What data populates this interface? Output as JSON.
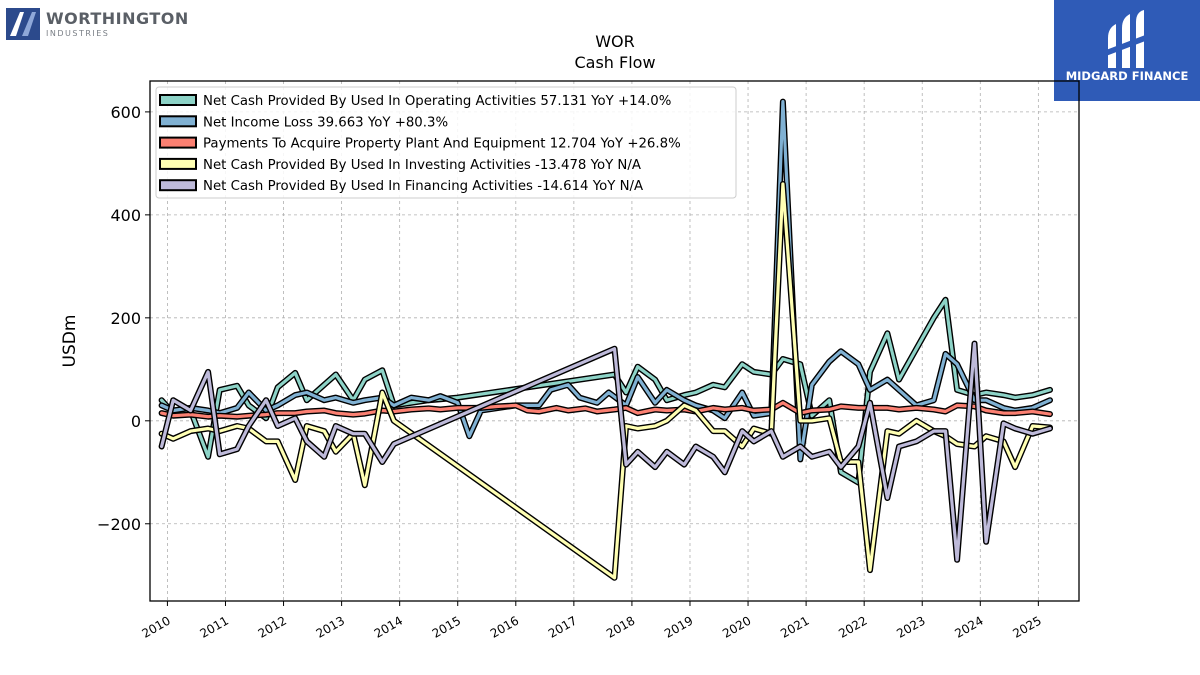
{
  "logos": {
    "left_brand": "WORTHINGTON",
    "left_sub": "INDUSTRIES",
    "right_brand": "MIDGARD FINANCE"
  },
  "chart_data": {
    "type": "line",
    "title": "WOR",
    "subtitle": "Cash Flow",
    "ylabel": "USDm",
    "xlabel": "",
    "xlim": [
      2009.7,
      2025.7
    ],
    "ylim": [
      -350,
      660
    ],
    "yticks": [
      -200,
      0,
      200,
      400,
      600
    ],
    "ytick_labels": [
      "−200",
      "0",
      "200",
      "400",
      "600"
    ],
    "xticks": [
      2010,
      2011,
      2012,
      2013,
      2014,
      2015,
      2016,
      2017,
      2018,
      2019,
      2020,
      2021,
      2022,
      2023,
      2024,
      2025
    ],
    "xtick_labels": [
      "2010",
      "2011",
      "2012",
      "2013",
      "2014",
      "2015",
      "2016",
      "2017",
      "2018",
      "2019",
      "2020",
      "2021",
      "2022",
      "2023",
      "2024",
      "2025"
    ],
    "grid": true,
    "legend_position": "top-left",
    "series": [
      {
        "name": "Net Cash Provided By Used In Operating Activities",
        "legend_label": "Net Cash Provided By Used In Operating Activities  57.131 YoY +14.0%",
        "color": "#8dd3c7",
        "points": [
          [
            2009.9,
            40
          ],
          [
            2010.1,
            15
          ],
          [
            2010.4,
            20
          ],
          [
            2010.7,
            -70
          ],
          [
            2010.9,
            60
          ],
          [
            2011.2,
            68
          ],
          [
            2011.4,
            30
          ],
          [
            2011.7,
            5
          ],
          [
            2011.9,
            65
          ],
          [
            2012.2,
            93
          ],
          [
            2012.4,
            40
          ],
          [
            2012.7,
            70
          ],
          [
            2012.9,
            90
          ],
          [
            2013.2,
            40
          ],
          [
            2013.4,
            80
          ],
          [
            2013.7,
            98
          ],
          [
            2013.9,
            30
          ],
          [
            2014.2,
            35
          ],
          [
            2014.5,
            40
          ],
          [
            2014.7,
            42
          ],
          [
            2015.0,
            45
          ],
          [
            2017.7,
            90
          ],
          [
            2017.9,
            55
          ],
          [
            2018.1,
            105
          ],
          [
            2018.4,
            80
          ],
          [
            2018.6,
            40
          ],
          [
            2018.9,
            50
          ],
          [
            2019.1,
            55
          ],
          [
            2019.4,
            70
          ],
          [
            2019.6,
            65
          ],
          [
            2019.9,
            110
          ],
          [
            2020.1,
            95
          ],
          [
            2020.4,
            90
          ],
          [
            2020.6,
            120
          ],
          [
            2020.9,
            110
          ],
          [
            2021.1,
            10
          ],
          [
            2021.4,
            40
          ],
          [
            2021.6,
            -100
          ],
          [
            2021.9,
            -120
          ],
          [
            2022.1,
            95
          ],
          [
            2022.4,
            170
          ],
          [
            2022.6,
            80
          ],
          [
            2022.9,
            140
          ],
          [
            2023.2,
            200
          ],
          [
            2023.4,
            235
          ],
          [
            2023.6,
            60
          ],
          [
            2023.9,
            50
          ],
          [
            2024.1,
            55
          ],
          [
            2024.4,
            50
          ],
          [
            2024.6,
            45
          ],
          [
            2024.9,
            50
          ],
          [
            2025.2,
            60
          ]
        ]
      },
      {
        "name": "Net Income Loss",
        "legend_label": "Net Income Loss  39.663 YoY +80.3%",
        "color": "#80b1d3",
        "points": [
          [
            2009.9,
            30
          ],
          [
            2010.1,
            20
          ],
          [
            2010.4,
            25
          ],
          [
            2010.7,
            20
          ],
          [
            2010.9,
            15
          ],
          [
            2011.2,
            25
          ],
          [
            2011.4,
            55
          ],
          [
            2011.7,
            20
          ],
          [
            2011.9,
            30
          ],
          [
            2012.2,
            50
          ],
          [
            2012.4,
            55
          ],
          [
            2012.7,
            40
          ],
          [
            2012.9,
            45
          ],
          [
            2013.2,
            35
          ],
          [
            2013.4,
            40
          ],
          [
            2013.7,
            45
          ],
          [
            2013.9,
            30
          ],
          [
            2014.2,
            45
          ],
          [
            2014.5,
            40
          ],
          [
            2014.7,
            48
          ],
          [
            2015.0,
            35
          ],
          [
            2015.2,
            -30
          ],
          [
            2015.4,
            20
          ],
          [
            2016.0,
            30
          ],
          [
            2016.4,
            30
          ],
          [
            2016.6,
            60
          ],
          [
            2016.9,
            70
          ],
          [
            2017.1,
            45
          ],
          [
            2017.4,
            35
          ],
          [
            2017.6,
            55
          ],
          [
            2017.9,
            30
          ],
          [
            2018.1,
            85
          ],
          [
            2018.4,
            35
          ],
          [
            2018.6,
            60
          ],
          [
            2018.9,
            40
          ],
          [
            2019.1,
            30
          ],
          [
            2019.4,
            20
          ],
          [
            2019.6,
            5
          ],
          [
            2019.9,
            55
          ],
          [
            2020.1,
            10
          ],
          [
            2020.4,
            15
          ],
          [
            2020.6,
            620
          ],
          [
            2020.9,
            -75
          ],
          [
            2021.1,
            70
          ],
          [
            2021.4,
            115
          ],
          [
            2021.6,
            135
          ],
          [
            2021.9,
            110
          ],
          [
            2022.1,
            60
          ],
          [
            2022.4,
            80
          ],
          [
            2022.6,
            60
          ],
          [
            2022.9,
            30
          ],
          [
            2023.2,
            40
          ],
          [
            2023.4,
            130
          ],
          [
            2023.6,
            110
          ],
          [
            2023.9,
            40
          ],
          [
            2024.1,
            40
          ],
          [
            2024.4,
            25
          ],
          [
            2024.6,
            20
          ],
          [
            2024.9,
            25
          ],
          [
            2025.2,
            40
          ]
        ]
      },
      {
        "name": "Payments To Acquire Property Plant And Equipment",
        "legend_label": "Payments To Acquire Property Plant And Equipment  12.704 YoY +26.8%",
        "color": "#fb8072",
        "points": [
          [
            2009.9,
            15
          ],
          [
            2010.1,
            10
          ],
          [
            2010.4,
            12
          ],
          [
            2010.7,
            8
          ],
          [
            2010.9,
            10
          ],
          [
            2011.2,
            8
          ],
          [
            2011.4,
            10
          ],
          [
            2011.7,
            12
          ],
          [
            2011.9,
            15
          ],
          [
            2012.2,
            15
          ],
          [
            2012.4,
            18
          ],
          [
            2012.7,
            20
          ],
          [
            2012.9,
            15
          ],
          [
            2013.2,
            12
          ],
          [
            2013.4,
            14
          ],
          [
            2013.7,
            20
          ],
          [
            2013.9,
            18
          ],
          [
            2014.2,
            22
          ],
          [
            2014.5,
            24
          ],
          [
            2014.7,
            22
          ],
          [
            2015.0,
            25
          ],
          [
            2015.4,
            25
          ],
          [
            2015.7,
            28
          ],
          [
            2016.0,
            30
          ],
          [
            2016.2,
            20
          ],
          [
            2016.4,
            18
          ],
          [
            2016.7,
            25
          ],
          [
            2016.9,
            20
          ],
          [
            2017.2,
            24
          ],
          [
            2017.4,
            18
          ],
          [
            2017.7,
            22
          ],
          [
            2017.9,
            25
          ],
          [
            2018.1,
            15
          ],
          [
            2018.4,
            22
          ],
          [
            2018.6,
            20
          ],
          [
            2018.9,
            22
          ],
          [
            2019.1,
            18
          ],
          [
            2019.4,
            25
          ],
          [
            2019.6,
            22
          ],
          [
            2019.9,
            25
          ],
          [
            2020.1,
            20
          ],
          [
            2020.4,
            22
          ],
          [
            2020.6,
            35
          ],
          [
            2020.9,
            15
          ],
          [
            2021.1,
            20
          ],
          [
            2021.4,
            22
          ],
          [
            2021.6,
            28
          ],
          [
            2021.9,
            25
          ],
          [
            2022.1,
            25
          ],
          [
            2022.4,
            25
          ],
          [
            2022.6,
            22
          ],
          [
            2022.9,
            25
          ],
          [
            2023.2,
            22
          ],
          [
            2023.4,
            18
          ],
          [
            2023.6,
            30
          ],
          [
            2023.9,
            28
          ],
          [
            2024.1,
            20
          ],
          [
            2024.4,
            15
          ],
          [
            2024.6,
            15
          ],
          [
            2024.9,
            18
          ],
          [
            2025.2,
            13
          ]
        ]
      },
      {
        "name": "Net Cash Provided By Used In Investing Activities",
        "legend_label": "Net Cash Provided By Used In Investing Activities  -13.478 YoY N/A",
        "color": "#ffffb3",
        "points": [
          [
            2009.9,
            -25
          ],
          [
            2010.1,
            -35
          ],
          [
            2010.4,
            -20
          ],
          [
            2010.7,
            -15
          ],
          [
            2010.9,
            -20
          ],
          [
            2011.2,
            -10
          ],
          [
            2011.4,
            -15
          ],
          [
            2011.7,
            -40
          ],
          [
            2011.9,
            -40
          ],
          [
            2012.2,
            -115
          ],
          [
            2012.4,
            -10
          ],
          [
            2012.7,
            -20
          ],
          [
            2012.9,
            -60
          ],
          [
            2013.2,
            -25
          ],
          [
            2013.4,
            -125
          ],
          [
            2013.7,
            55
          ],
          [
            2013.9,
            0
          ],
          [
            2017.7,
            -305
          ],
          [
            2017.9,
            -10
          ],
          [
            2018.1,
            -15
          ],
          [
            2018.4,
            -10
          ],
          [
            2018.6,
            0
          ],
          [
            2018.9,
            30
          ],
          [
            2019.1,
            20
          ],
          [
            2019.4,
            -20
          ],
          [
            2019.6,
            -20
          ],
          [
            2019.9,
            -50
          ],
          [
            2020.1,
            -15
          ],
          [
            2020.4,
            -25
          ],
          [
            2020.6,
            460
          ],
          [
            2020.9,
            0
          ],
          [
            2021.1,
            0
          ],
          [
            2021.4,
            5
          ],
          [
            2021.6,
            -80
          ],
          [
            2021.9,
            -80
          ],
          [
            2022.1,
            -290
          ],
          [
            2022.4,
            -20
          ],
          [
            2022.6,
            -25
          ],
          [
            2022.9,
            0
          ],
          [
            2023.2,
            -20
          ],
          [
            2023.4,
            -30
          ],
          [
            2023.6,
            -45
          ],
          [
            2023.9,
            -50
          ],
          [
            2024.1,
            -30
          ],
          [
            2024.4,
            -40
          ],
          [
            2024.6,
            -90
          ],
          [
            2024.9,
            -10
          ],
          [
            2025.2,
            -13
          ]
        ]
      },
      {
        "name": "Net Cash Provided By Used In Financing Activities",
        "legend_label": "Net Cash Provided By Used In Financing Activities  -14.614 YoY N/A",
        "color": "#bebada",
        "points": [
          [
            2009.9,
            -50
          ],
          [
            2010.1,
            40
          ],
          [
            2010.4,
            20
          ],
          [
            2010.7,
            95
          ],
          [
            2010.9,
            -65
          ],
          [
            2011.2,
            -55
          ],
          [
            2011.4,
            -10
          ],
          [
            2011.7,
            40
          ],
          [
            2011.9,
            -10
          ],
          [
            2012.2,
            5
          ],
          [
            2012.4,
            -40
          ],
          [
            2012.7,
            -70
          ],
          [
            2012.9,
            -10
          ],
          [
            2013.2,
            -25
          ],
          [
            2013.4,
            -25
          ],
          [
            2013.7,
            -80
          ],
          [
            2013.9,
            -45
          ],
          [
            2017.7,
            140
          ],
          [
            2017.9,
            -85
          ],
          [
            2018.1,
            -60
          ],
          [
            2018.4,
            -90
          ],
          [
            2018.6,
            -60
          ],
          [
            2018.9,
            -85
          ],
          [
            2019.1,
            -50
          ],
          [
            2019.4,
            -70
          ],
          [
            2019.6,
            -100
          ],
          [
            2019.9,
            -20
          ],
          [
            2020.1,
            -40
          ],
          [
            2020.4,
            -20
          ],
          [
            2020.6,
            -70
          ],
          [
            2020.9,
            -50
          ],
          [
            2021.1,
            -70
          ],
          [
            2021.4,
            -60
          ],
          [
            2021.6,
            -90
          ],
          [
            2021.9,
            -50
          ],
          [
            2022.1,
            35
          ],
          [
            2022.4,
            -150
          ],
          [
            2022.6,
            -50
          ],
          [
            2022.9,
            -40
          ],
          [
            2023.2,
            -20
          ],
          [
            2023.4,
            -20
          ],
          [
            2023.6,
            -270
          ],
          [
            2023.9,
            150
          ],
          [
            2024.1,
            -235
          ],
          [
            2024.4,
            -5
          ],
          [
            2024.6,
            -15
          ],
          [
            2024.9,
            -25
          ],
          [
            2025.2,
            -15
          ]
        ]
      }
    ]
  }
}
